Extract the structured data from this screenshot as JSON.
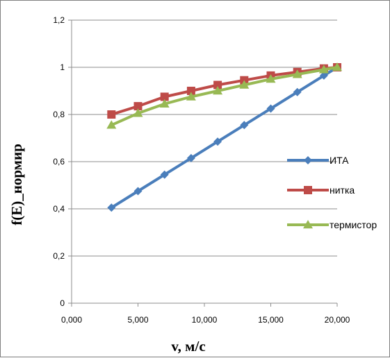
{
  "chart_data": {
    "type": "line",
    "title": "",
    "xlabel": "v, м/с",
    "ylabel": "f(E)_нормир",
    "xlim": [
      0,
      20000
    ],
    "ylim": [
      0,
      1.2
    ],
    "x_ticks": [
      "0,000",
      "5,000",
      "10,000",
      "15,000",
      "20,000"
    ],
    "y_ticks": [
      "0",
      "0,2",
      "0,4",
      "0,6",
      "0,8",
      "1",
      "1,2"
    ],
    "grid": "horizontal",
    "legend_position": "right",
    "series": [
      {
        "name": "ИТА",
        "color": "#4a7ebb",
        "marker": "diamond",
        "x": [
          3000,
          5000,
          7000,
          9000,
          11000,
          13000,
          15000,
          17000,
          19000,
          20000
        ],
        "y": [
          0.405,
          0.475,
          0.545,
          0.615,
          0.685,
          0.755,
          0.825,
          0.895,
          0.965,
          1.0
        ]
      },
      {
        "name": "нитка",
        "color": "#be4b48",
        "marker": "square",
        "x": [
          3000,
          5000,
          7000,
          9000,
          11000,
          13000,
          15000,
          17000,
          19000,
          20000
        ],
        "y": [
          0.8,
          0.835,
          0.875,
          0.9,
          0.925,
          0.945,
          0.965,
          0.98,
          0.995,
          1.0
        ]
      },
      {
        "name": "термистор",
        "color": "#98b954",
        "marker": "triangle",
        "x": [
          3000,
          5000,
          7000,
          9000,
          11000,
          13000,
          15000,
          17000,
          19000,
          20000
        ],
        "y": [
          0.755,
          0.805,
          0.845,
          0.875,
          0.9,
          0.925,
          0.95,
          0.97,
          0.99,
          1.0
        ]
      }
    ]
  }
}
